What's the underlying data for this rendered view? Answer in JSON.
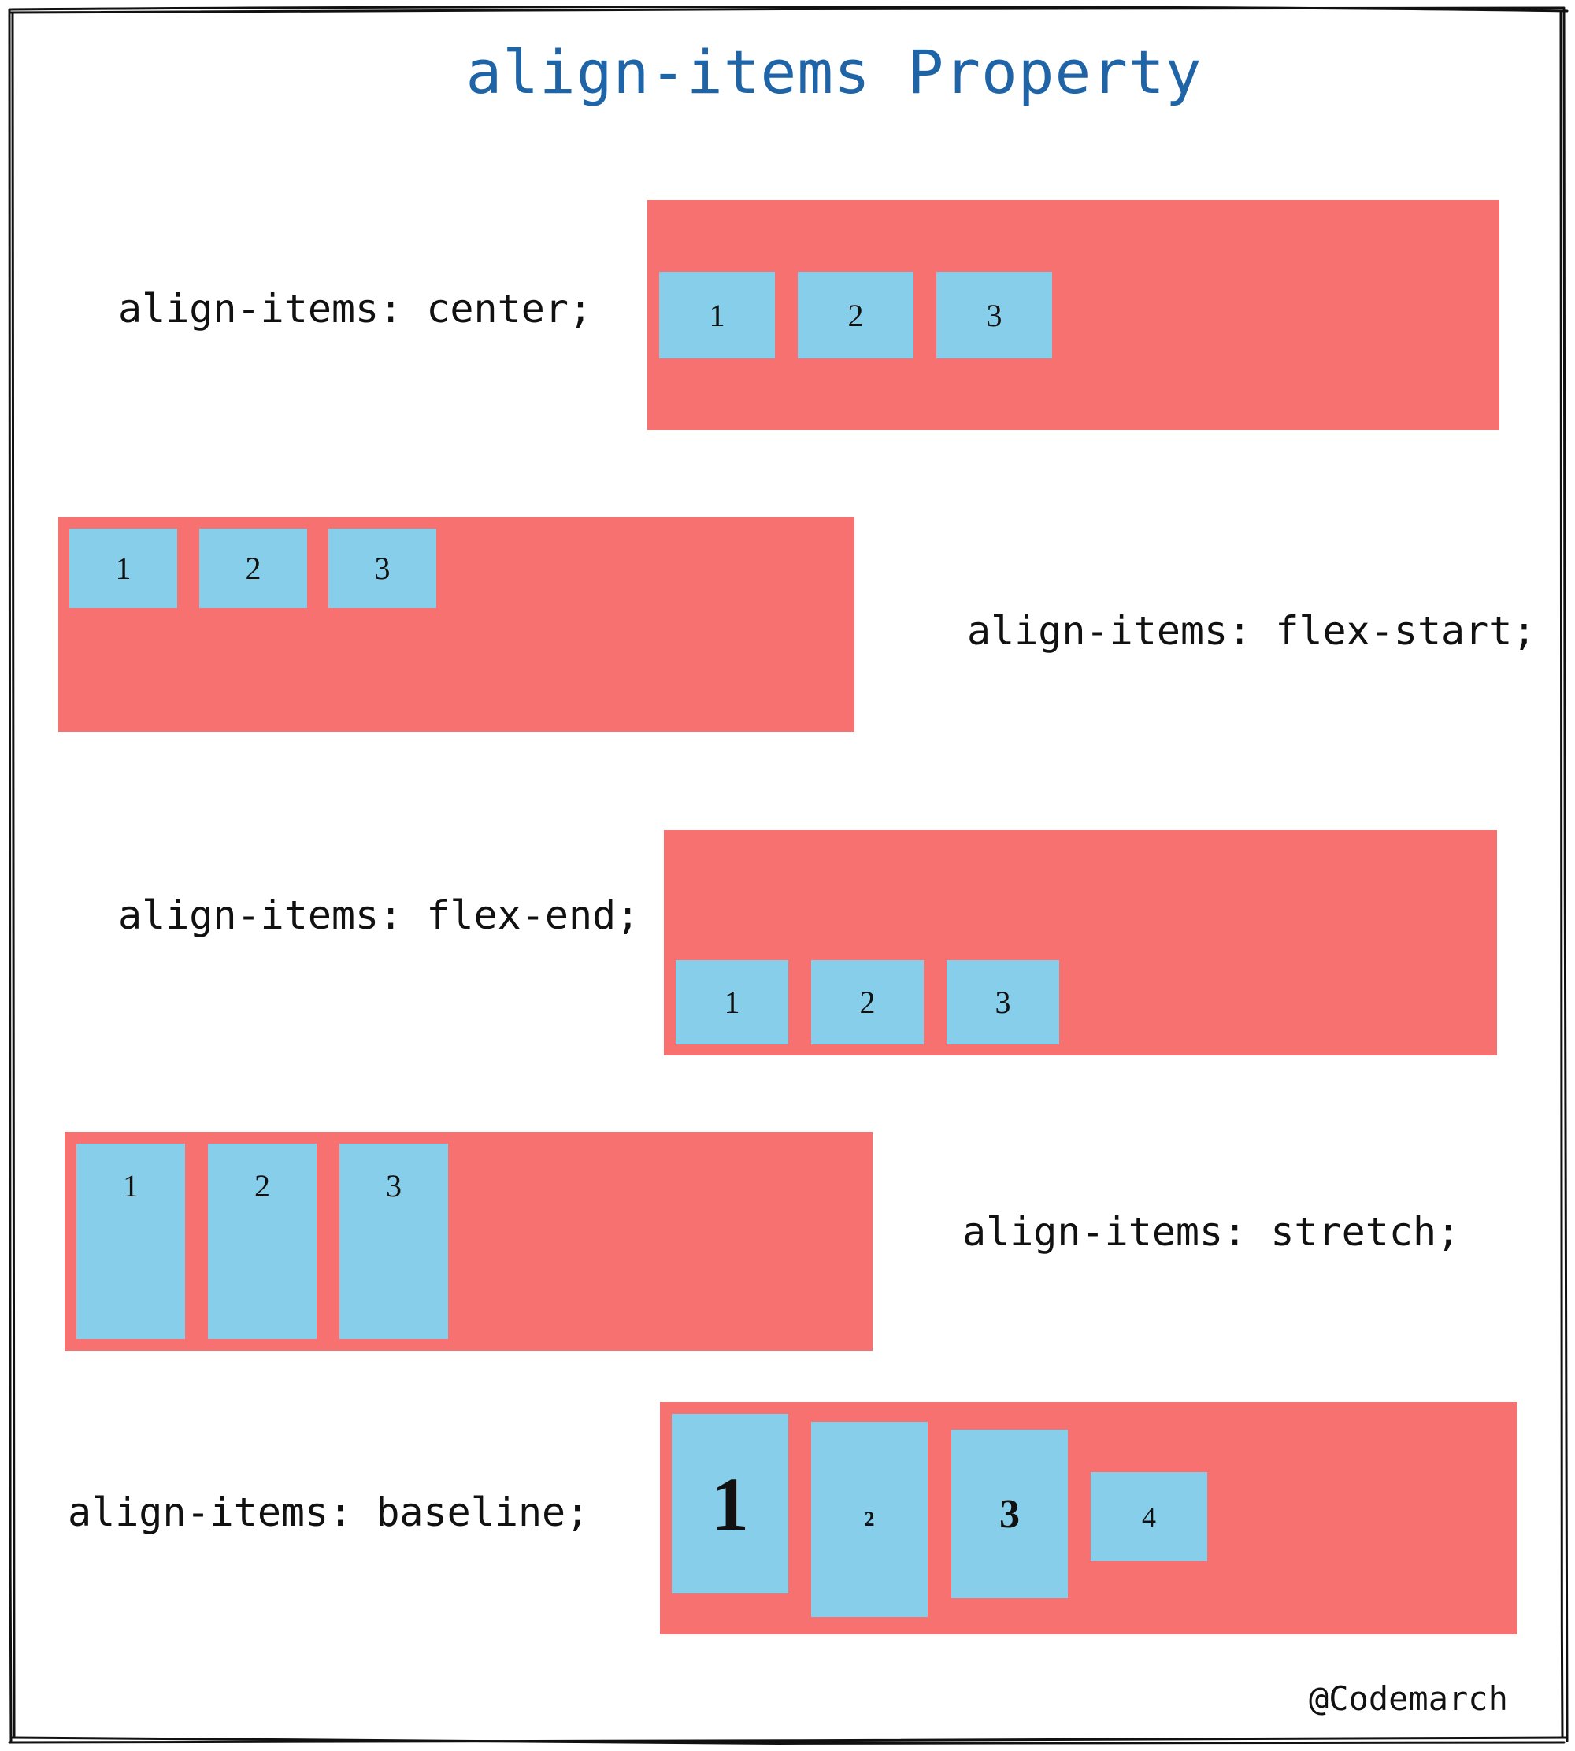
{
  "title": "align-items Property",
  "colors": {
    "title": "#1f64a6",
    "container": "#f87171",
    "item": "#87ceeb",
    "text": "#111111"
  },
  "sections": [
    {
      "label": "align-items: center;",
      "items": [
        "1",
        "2",
        "3"
      ]
    },
    {
      "label": "align-items: flex-start;",
      "items": [
        "1",
        "2",
        "3"
      ]
    },
    {
      "label": "align-items: flex-end;",
      "items": [
        "1",
        "2",
        "3"
      ]
    },
    {
      "label": "align-items: stretch;",
      "items": [
        "1",
        "2",
        "3"
      ]
    },
    {
      "label": "align-items: baseline;",
      "items": [
        "1",
        "2",
        "3",
        "4"
      ]
    }
  ],
  "signature": "@Codemarch"
}
